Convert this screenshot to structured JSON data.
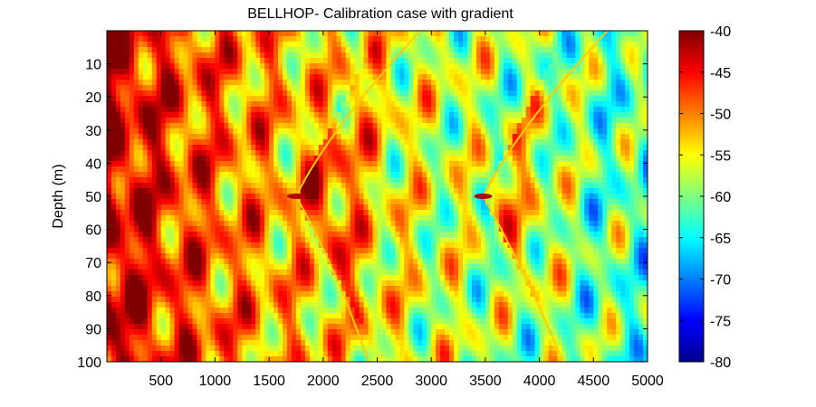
{
  "chart_data": {
    "type": "heatmap",
    "title": "BELLHOP- Calibration  case with gradient",
    "xlabel": "",
    "ylabel": "Depth (m)",
    "xlim": [
      0,
      5000
    ],
    "ylim": [
      100,
      0
    ],
    "xticks": [
      "500",
      "1000",
      "1500",
      "2000",
      "2500",
      "3000",
      "3500",
      "4000",
      "4500",
      "5000"
    ],
    "yticks": [
      "10",
      "20",
      "30",
      "40",
      "50",
      "60",
      "70",
      "80",
      "90",
      "100"
    ],
    "colorbar": {
      "range": [
        -80,
        -40
      ],
      "ticks": [
        "-40",
        "-45",
        "-50",
        "-55",
        "-60",
        "-65",
        "-70",
        "-75",
        "-80"
      ],
      "colormap": "jet"
    },
    "features": {
      "source_depth": 50,
      "caustic_cusps": [
        {
          "x": 1750,
          "depth": 50
        },
        {
          "x": 3480,
          "depth": 50
        }
      ],
      "bottom_caustic_x": [
        2420,
        4220
      ]
    }
  }
}
